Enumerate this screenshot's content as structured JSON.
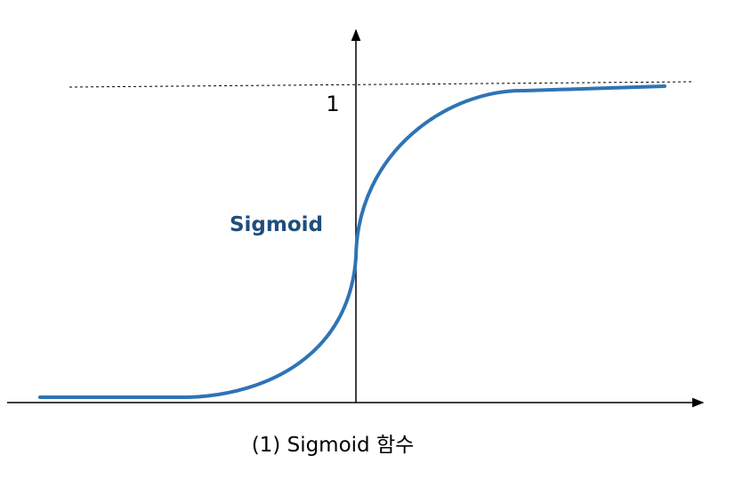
{
  "diagram": {
    "curve_label": "Sigmoid",
    "asymptote_label": "1",
    "caption": "(1) Sigmoid 함수",
    "colors": {
      "curve": "#2e74b5",
      "curve_label": "#1f4e79",
      "axis": "#000000",
      "asymptote": "#000000"
    }
  }
}
